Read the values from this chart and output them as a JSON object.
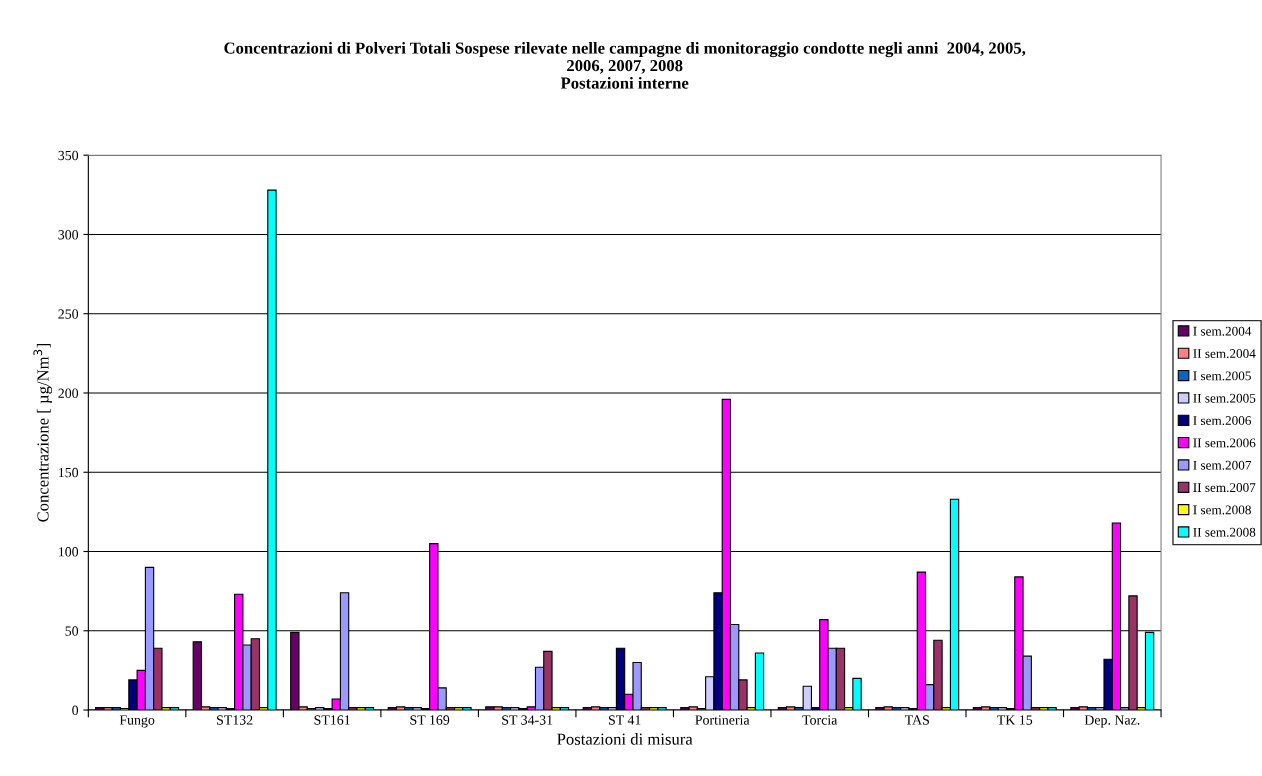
{
  "chart_data": {
    "type": "bar",
    "title": "Concentrazioni di Polveri Totali Sospese rilevate nelle campagne di monitoraggio condotte negli anni  2004, 2005,\n2006, 2007, 2008\nPostazioni interne",
    "xlabel": "Postazioni di misura",
    "ylabel": "Concentrazione [ µg/Nm$^{3}$]",
    "categories": [
      "Fungo",
      "ST132",
      "ST161",
      "ST 169",
      "ST 34-31",
      "ST 41",
      "Portineria",
      "Torcia",
      "TAS",
      "TK 15",
      "Dep. Naz."
    ],
    "series": [
      {
        "name": "I sem.2004",
        "color": "#660066",
        "values": [
          1.5,
          43,
          49,
          1.5,
          2,
          1.5,
          1.5,
          1.5,
          1.5,
          1.5,
          1.5
        ]
      },
      {
        "name": "II sem.2004",
        "color": "#ff8080",
        "values": [
          1.5,
          2,
          2,
          2,
          2,
          2,
          2,
          2,
          2,
          2,
          2
        ]
      },
      {
        "name": "I sem.2005",
        "color": "#0066cc",
        "values": [
          1.5,
          1.5,
          1,
          1.5,
          1.5,
          1.5,
          1,
          1.5,
          1.5,
          1.5,
          1.5
        ]
      },
      {
        "name": "II sem.2005",
        "color": "#ccccff",
        "values": [
          1,
          1.5,
          1.5,
          1.5,
          1.5,
          1.5,
          21,
          15,
          1.5,
          1.5,
          1.5
        ]
      },
      {
        "name": "I sem.2006",
        "color": "#000080",
        "values": [
          19,
          1,
          1,
          1,
          1,
          39,
          74,
          1.5,
          1,
          1,
          32
        ]
      },
      {
        "name": "II sem.2006",
        "color": "#ff00ff",
        "values": [
          25,
          73,
          7,
          105,
          2,
          10,
          196,
          57,
          87,
          84,
          118
        ]
      },
      {
        "name": "I sem.2007",
        "color": "#9999ff",
        "values": [
          90,
          41,
          74,
          14,
          27,
          30,
          54,
          39,
          16,
          34,
          1.5
        ]
      },
      {
        "name": "II sem.2007",
        "color": "#993366",
        "values": [
          39,
          45,
          1.5,
          1.5,
          37,
          1.5,
          19,
          39,
          44,
          1.5,
          72
        ]
      },
      {
        "name": "I sem.2008",
        "color": "#ffff00",
        "values": [
          1.5,
          1.5,
          1.5,
          1.5,
          1.5,
          1.5,
          1.5,
          1.5,
          1.5,
          1.5,
          1.5
        ]
      },
      {
        "name": "II sem.2008",
        "color": "#00ffff",
        "values": [
          1.5,
          328,
          1.5,
          1.5,
          1.5,
          1.5,
          36,
          20,
          133,
          1.5,
          49
        ]
      }
    ],
    "ylim": [
      0,
      350
    ],
    "yticks": [
      0,
      50,
      100,
      150,
      200,
      250,
      300,
      350
    ],
    "grid": "y",
    "legend": "right"
  }
}
